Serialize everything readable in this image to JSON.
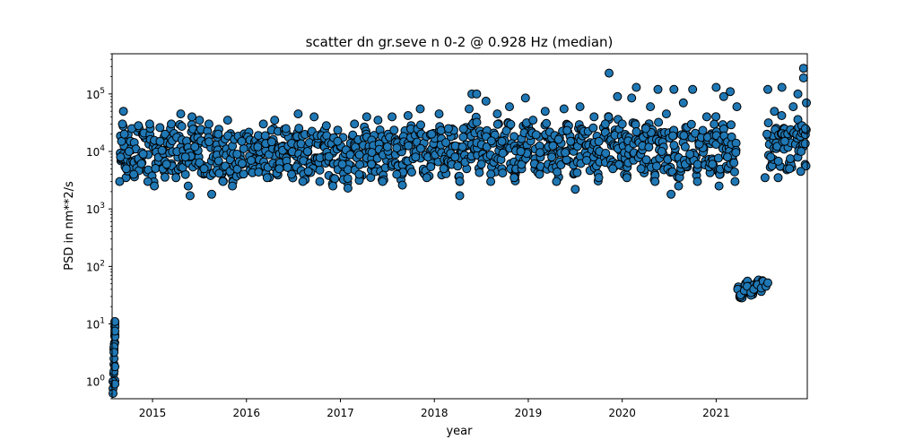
{
  "chart_data": {
    "type": "scatter",
    "title": "scatter dn gr.seve n 0-2 @ 0.928 Hz (median)",
    "xlabel": "year",
    "ylabel": "PSD in nm**2/s",
    "xscale": "linear",
    "yscale": "log",
    "xlim": [
      2014.57,
      2021.97
    ],
    "ylim": [
      0.5,
      500000
    ],
    "x_ticks": [
      {
        "value": 2015,
        "label": "2015"
      },
      {
        "value": 2016,
        "label": "2016"
      },
      {
        "value": 2017,
        "label": "2017"
      },
      {
        "value": 2018,
        "label": "2018"
      },
      {
        "value": 2019,
        "label": "2019"
      },
      {
        "value": 2020,
        "label": "2020"
      },
      {
        "value": 2021,
        "label": "2021"
      }
    ],
    "y_ticks": [
      {
        "value": 1,
        "base": "10",
        "exp": "0"
      },
      {
        "value": 10,
        "base": "10",
        "exp": "1"
      },
      {
        "value": 100,
        "base": "10",
        "exp": "2"
      },
      {
        "value": 1000,
        "base": "10",
        "exp": "3"
      },
      {
        "value": 10000,
        "base": "10",
        "exp": "4"
      },
      {
        "value": 100000,
        "base": "10",
        "exp": "5"
      }
    ],
    "grid": false,
    "marker_color": "#1f77b4",
    "marker_edge_color": "#000000",
    "series": [
      {
        "points": [
          [
            2014.58,
            0.62
          ],
          [
            2014.58,
            1.0
          ],
          [
            2014.59,
            1.5
          ],
          [
            2014.59,
            2.5
          ],
          [
            2014.59,
            4.0
          ],
          [
            2014.6,
            6.0
          ],
          [
            2014.6,
            9.0
          ],
          [
            2014.6,
            11.0
          ],
          [
            2014.6,
            7.5
          ],
          [
            2014.59,
            3.2
          ],
          [
            2014.6,
            1.8
          ],
          [
            2014.6,
            0.9
          ],
          [
            2014.65,
            3000
          ],
          [
            2014.66,
            8000
          ],
          [
            2014.67,
            15000
          ],
          [
            2014.68,
            30000
          ],
          [
            2014.69,
            50000
          ],
          [
            2014.7,
            20000
          ],
          [
            2014.72,
            5000
          ],
          [
            2014.75,
            10000
          ],
          [
            2014.78,
            25000
          ],
          [
            2014.8,
            4000
          ],
          [
            2014.85,
            28000
          ],
          [
            2014.9,
            9000
          ],
          [
            2014.95,
            3000
          ],
          [
            2014.97,
            30000
          ],
          [
            2015.02,
            2500
          ],
          [
            2015.08,
            15000
          ],
          [
            2015.15,
            6000
          ],
          [
            2015.2,
            30000
          ],
          [
            2015.25,
            3500
          ],
          [
            2015.3,
            45000
          ],
          [
            2015.35,
            8000
          ],
          [
            2015.38,
            2500
          ],
          [
            2015.42,
            40000
          ],
          [
            2015.45,
            12000
          ],
          [
            2015.4,
            1700
          ],
          [
            2015.5,
            35000
          ],
          [
            2015.55,
            5000
          ],
          [
            2015.6,
            30000
          ],
          [
            2015.63,
            1800
          ],
          [
            2015.7,
            20000
          ],
          [
            2015.75,
            3000
          ],
          [
            2015.8,
            35000
          ],
          [
            2015.85,
            2500
          ],
          [
            2015.9,
            9000
          ],
          [
            2015.95,
            15000
          ],
          [
            2016.05,
            7000
          ],
          [
            2016.12,
            12000
          ],
          [
            2016.18,
            30000
          ],
          [
            2016.22,
            3500
          ],
          [
            2016.3,
            35000
          ],
          [
            2016.35,
            5000
          ],
          [
            2016.42,
            25000
          ],
          [
            2016.48,
            4000
          ],
          [
            2016.55,
            45000
          ],
          [
            2016.6,
            3000
          ],
          [
            2016.65,
            10000
          ],
          [
            2016.72,
            40000
          ],
          [
            2016.78,
            3000
          ],
          [
            2016.85,
            28000
          ],
          [
            2016.92,
            2500
          ],
          [
            2016.97,
            15000
          ],
          [
            2017.02,
            6000
          ],
          [
            2017.08,
            2300
          ],
          [
            2017.15,
            30000
          ],
          [
            2017.2,
            4000
          ],
          [
            2017.28,
            40000
          ],
          [
            2017.33,
            6000
          ],
          [
            2017.4,
            35000
          ],
          [
            2017.45,
            3000
          ],
          [
            2017.5,
            12000
          ],
          [
            2017.55,
            40000
          ],
          [
            2017.6,
            4000
          ],
          [
            2017.66,
            2600
          ],
          [
            2017.72,
            42000
          ],
          [
            2017.8,
            8000
          ],
          [
            2017.85,
            55000
          ],
          [
            2017.92,
            3500
          ],
          [
            2017.97,
            20000
          ],
          [
            2018.05,
            45000
          ],
          [
            2018.1,
            5000
          ],
          [
            2018.15,
            25000
          ],
          [
            2018.22,
            8000
          ],
          [
            2018.27,
            1700
          ],
          [
            2018.3,
            12000
          ],
          [
            2018.37,
            55000
          ],
          [
            2018.4,
            100000
          ],
          [
            2018.45,
            100000
          ],
          [
            2018.5,
            6000
          ],
          [
            2018.55,
            75000
          ],
          [
            2018.6,
            3000
          ],
          [
            2018.67,
            45000
          ],
          [
            2018.72,
            15000
          ],
          [
            2018.8,
            60000
          ],
          [
            2018.85,
            3500
          ],
          [
            2018.92,
            10000
          ],
          [
            2018.97,
            85000
          ],
          [
            2019.05,
            35000
          ],
          [
            2019.12,
            4000
          ],
          [
            2019.18,
            50000
          ],
          [
            2019.25,
            8000
          ],
          [
            2019.3,
            3000
          ],
          [
            2019.38,
            55000
          ],
          [
            2019.45,
            15000
          ],
          [
            2019.5,
            2200
          ],
          [
            2019.55,
            60000
          ],
          [
            2019.62,
            7000
          ],
          [
            2019.7,
            40000
          ],
          [
            2019.75,
            3500
          ],
          [
            2019.82,
            30000
          ],
          [
            2019.86,
            230000
          ],
          [
            2019.9,
            5000
          ],
          [
            2019.95,
            90000
          ],
          [
            2020.0,
            30000
          ],
          [
            2020.05,
            3500
          ],
          [
            2020.1,
            85000
          ],
          [
            2020.15,
            130000
          ],
          [
            2020.2,
            5000
          ],
          [
            2020.25,
            25000
          ],
          [
            2020.3,
            60000
          ],
          [
            2020.35,
            3000
          ],
          [
            2020.38,
            120000
          ],
          [
            2020.42,
            10000
          ],
          [
            2020.47,
            45000
          ],
          [
            2020.52,
            1800
          ],
          [
            2020.55,
            120000
          ],
          [
            2020.6,
            2500
          ],
          [
            2020.65,
            70000
          ],
          [
            2020.72,
            9000
          ],
          [
            2020.75,
            120000
          ],
          [
            2020.8,
            3000
          ],
          [
            2020.9,
            40000
          ],
          [
            2020.96,
            6000
          ],
          [
            2021.0,
            130000
          ],
          [
            2021.03,
            2500
          ],
          [
            2021.08,
            90000
          ],
          [
            2021.12,
            8000
          ],
          [
            2021.15,
            110000
          ],
          [
            2021.2,
            3000
          ],
          [
            2021.22,
            60000
          ],
          [
            2021.23,
            40
          ],
          [
            2021.26,
            32
          ],
          [
            2021.3,
            38
          ],
          [
            2021.33,
            45
          ],
          [
            2021.37,
            35
          ],
          [
            2021.4,
            40
          ],
          [
            2021.44,
            48
          ],
          [
            2021.48,
            42
          ],
          [
            2021.5,
            55
          ],
          [
            2021.53,
            45
          ],
          [
            2021.55,
            52
          ],
          [
            2021.52,
            3500
          ],
          [
            2021.54,
            20000
          ],
          [
            2021.55,
            120000
          ],
          [
            2021.58,
            8000
          ],
          [
            2021.62,
            50000
          ],
          [
            2021.66,
            3500
          ],
          [
            2021.7,
            130000
          ],
          [
            2021.73,
            15000
          ],
          [
            2021.78,
            5000
          ],
          [
            2021.82,
            60000
          ],
          [
            2021.87,
            100000
          ],
          [
            2021.9,
            4500
          ],
          [
            2021.93,
            280000
          ],
          [
            2021.93,
            190000
          ],
          [
            2021.95,
            25000
          ],
          [
            2021.96,
            70000
          ]
        ]
      }
    ]
  }
}
